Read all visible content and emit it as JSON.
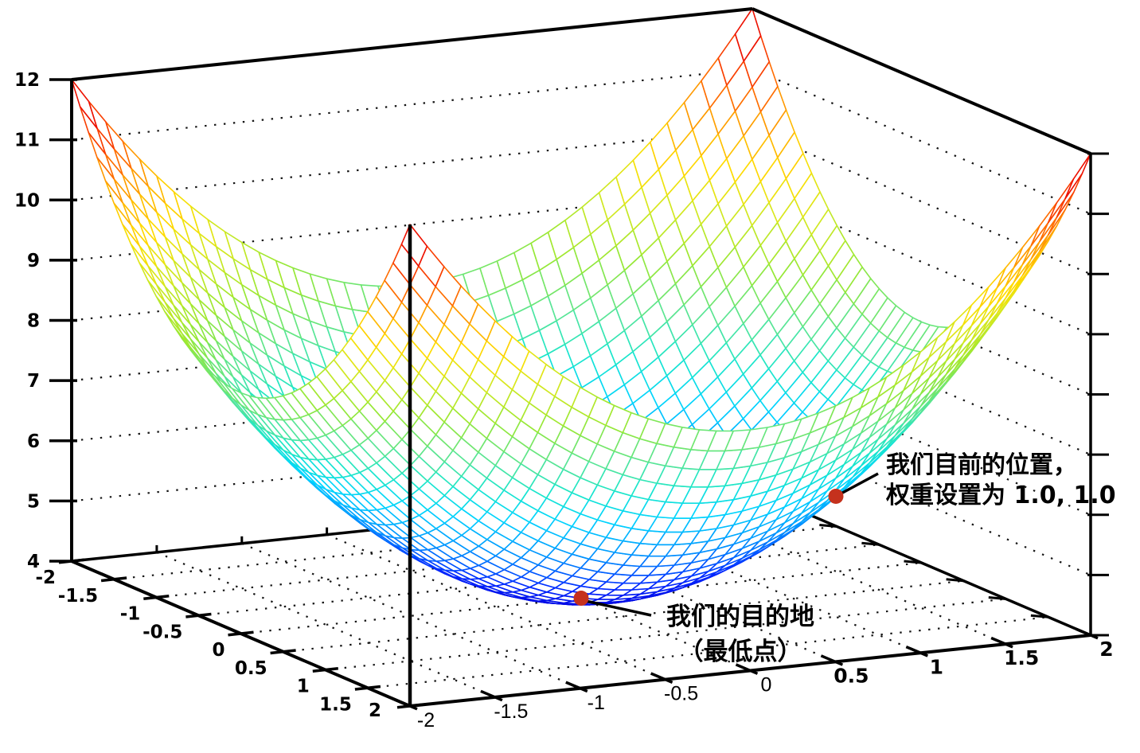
{
  "chart_data": {
    "type": "surface",
    "title": "",
    "surface": {
      "formula": "z = x^2 + y^2 + 4",
      "c": 4,
      "x_min": -2,
      "x_max": 2,
      "y_min": -2,
      "y_max": 2,
      "grid_step": 0.1
    },
    "axes": {
      "x": {
        "range": [
          -2,
          2
        ],
        "tick_labels": [
          "-2",
          "-1.5",
          "-1",
          "-0.5",
          "0",
          "0.5",
          "1",
          "1.5",
          "2"
        ]
      },
      "y": {
        "range": [
          -2,
          2
        ],
        "tick_labels": [
          "-2",
          "-1.5",
          "-1",
          "-0.5",
          "0",
          "0.5",
          "1",
          "1.5",
          "2"
        ]
      },
      "z": {
        "range": [
          4,
          12
        ],
        "tick_labels": [
          "4",
          "5",
          "6",
          "7",
          "8",
          "9",
          "10",
          "11",
          "12"
        ]
      }
    },
    "grid": {
      "style": "dotted",
      "floor_step": 0.5,
      "wall_z_lines": [
        5,
        6,
        7,
        8,
        9,
        10,
        11
      ]
    },
    "colormap": {
      "name": "jet",
      "stops": [
        [
          0.0,
          "#0000dd"
        ],
        [
          0.1,
          "#0028ff"
        ],
        [
          0.2,
          "#0092ff"
        ],
        [
          0.3,
          "#00d4ff"
        ],
        [
          0.375,
          "#19e6cc"
        ],
        [
          0.45,
          "#55e599"
        ],
        [
          0.55,
          "#99e833"
        ],
        [
          0.65,
          "#d6e81f"
        ],
        [
          0.72,
          "#ffdd00"
        ],
        [
          0.8,
          "#ffaa00"
        ],
        [
          0.88,
          "#ff5500"
        ],
        [
          0.95,
          "#ee1100"
        ],
        [
          1.0,
          "#cc0000"
        ]
      ]
    },
    "markers": [
      {
        "x": 1.0,
        "y": 1.0,
        "z": 6.0,
        "color": "#c5311d",
        "label_line1": "我们目前的位置，",
        "label_line2": "权重设置为 1.0, 1.0"
      },
      {
        "x": 0.0,
        "y": 0.0,
        "z": 4.0,
        "color": "#c5311d",
        "label_line1": "我们的目的地",
        "label_line2": "（最低点）"
      }
    ],
    "legend": "none",
    "axis_color": "#000000",
    "grid_dot_color": "#151515",
    "background": "#ffffff"
  }
}
